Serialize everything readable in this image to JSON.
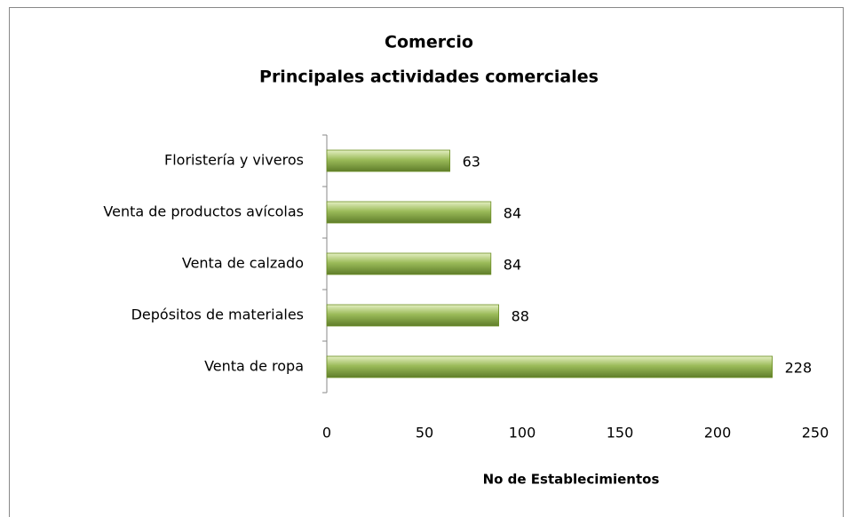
{
  "chart_data": {
    "type": "bar",
    "orientation": "horizontal",
    "title": "Comercio",
    "subtitle": "Principales actividades comerciales",
    "categories": [
      "Floristería y viveros",
      "Venta de productos avícolas",
      "Venta de calzado",
      "Depósitos de materiales",
      "Venta de ropa"
    ],
    "values": [
      63,
      84,
      84,
      88,
      228
    ],
    "color": "#9bbb59",
    "xlim": [
      0,
      250
    ],
    "xticks": [
      0,
      50,
      100,
      150,
      200,
      250
    ],
    "xlabel": "No de Establecimientos",
    "grid": false
  }
}
